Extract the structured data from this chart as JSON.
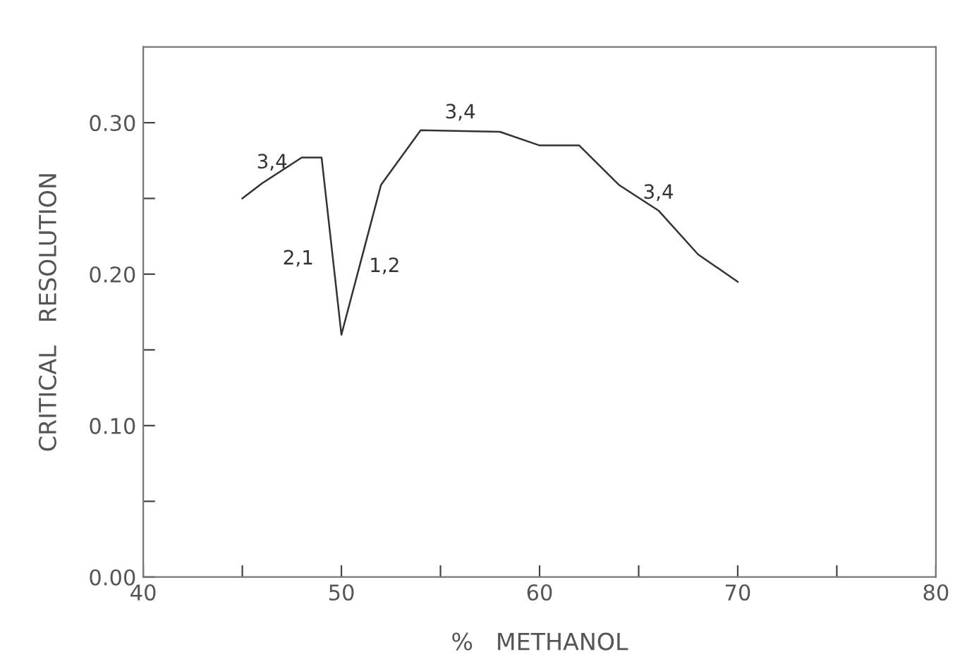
{
  "chart_data": {
    "type": "line",
    "xlabel": "%   METHANOL",
    "ylabel": "CRITICAL   RESOLUTION",
    "x": [
      45,
      46,
      48,
      49,
      50,
      52,
      54,
      58,
      60,
      62,
      64,
      66,
      68,
      70
    ],
    "values": [
      0.25,
      0.26,
      0.277,
      0.277,
      0.16,
      0.259,
      0.295,
      0.294,
      0.285,
      0.285,
      0.259,
      0.242,
      0.213,
      0.195
    ],
    "color": "#333333",
    "marker": "none",
    "line_style": "solid",
    "grid": false,
    "legend": false,
    "xlim": [
      40,
      80
    ],
    "xticks": [
      40,
      {
        "value": 45,
        "label": null
      },
      50,
      {
        "value": 55,
        "label": null
      },
      60,
      {
        "value": 65,
        "label": null
      },
      70,
      {
        "value": 75,
        "label": null
      },
      80
    ],
    "ylim": [
      0,
      0.35
    ],
    "yticks": [
      {
        "value": 0,
        "label": "0.00"
      },
      {
        "value": 0.05,
        "label": null
      },
      {
        "value": 0.1,
        "label": "0.10"
      },
      {
        "value": 0.15,
        "label": null
      },
      {
        "value": 0.2,
        "label": "0.20"
      },
      {
        "value": 0.25,
        "label": null
      },
      {
        "value": 0.3,
        "label": "0.30"
      }
    ],
    "annotations": [
      {
        "text": "3,4",
        "x": 46.5,
        "y": 0.262
      },
      {
        "text": "2,1",
        "x": 49.2,
        "y": 0.21
      },
      {
        "text": "1,2",
        "x": 50.8,
        "y": 0.205
      },
      {
        "text": "3,4",
        "x": 56,
        "y": 0.295
      },
      {
        "text": "3,4",
        "x": 66,
        "y": 0.242
      }
    ]
  }
}
